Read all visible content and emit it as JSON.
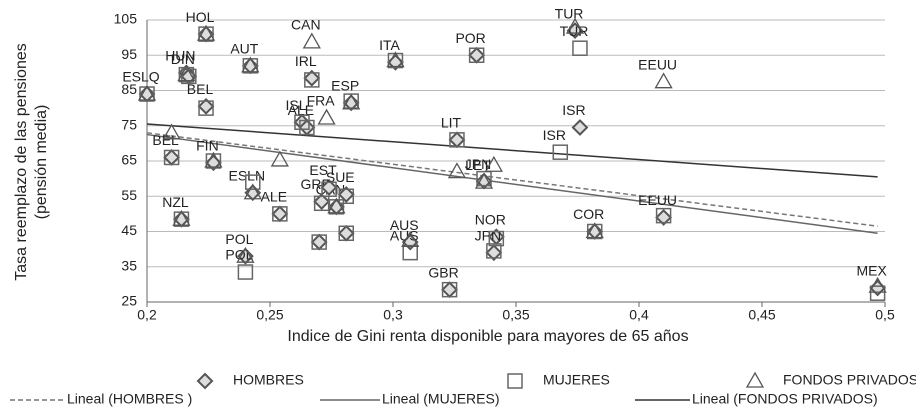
{
  "chart_data": {
    "type": "scatter",
    "x_label": "Indice de Gini renta disponible para mayores de 65 años",
    "y_label": [
      "Tasa reemplazo de las pensiones",
      "(pensión media)"
    ],
    "xlim": [
      0.2,
      0.5
    ],
    "ylim": [
      25,
      105
    ],
    "xticks": [
      {
        "value": 0.2,
        "label": "0,2"
      },
      {
        "value": 0.25,
        "label": "0,25"
      },
      {
        "value": 0.3,
        "label": "0,3"
      },
      {
        "value": 0.35,
        "label": "0,35"
      },
      {
        "value": 0.4,
        "label": "0,4"
      },
      {
        "value": 0.45,
        "label": "0,45"
      },
      {
        "value": 0.5,
        "label": "0,5"
      }
    ],
    "yticks": [
      25,
      35,
      45,
      55,
      65,
      75,
      85,
      95,
      105
    ],
    "grid": true,
    "series": [
      {
        "name": "HOMBRES",
        "marker": "diamond",
        "color": "#555555",
        "x": [
          0.2,
          0.224,
          0.216,
          0.217,
          0.224,
          0.227,
          0.21,
          0.214,
          0.243,
          0.254,
          0.24,
          0.242,
          0.263,
          0.265,
          0.267,
          0.271,
          0.277,
          0.274,
          0.281,
          0.283,
          0.301,
          0.27,
          0.281,
          0.307,
          0.323,
          0.326,
          0.334,
          0.337,
          0.342,
          0.341,
          0.374,
          0.376,
          0.382,
          0.41,
          0.497
        ],
        "values": [
          84,
          101,
          90,
          89,
          80.5,
          64.5,
          66,
          48.5,
          56,
          50,
          38,
          92,
          76,
          74.5,
          88.5,
          53.5,
          52,
          57.5,
          55.5,
          81.5,
          93,
          42,
          44.5,
          42,
          28.5,
          71,
          95,
          59.3,
          43.5,
          39,
          102,
          74.5,
          45,
          49,
          29
        ],
        "labels": [
          "ESLQ",
          "HOL",
          "HUN",
          "DIN",
          "BEL",
          "FIN",
          "BEL",
          "NZL",
          "ESLN",
          "ALE",
          "POL",
          "AUT",
          "ISL",
          "ALE",
          "IRL",
          "GRE",
          "CAN",
          "EST",
          "SUE",
          "ESP",
          "ITA",
          null,
          null,
          "AUS",
          "GBR",
          "LIT",
          "POR",
          "JPN",
          "NOR",
          "JPN",
          "TUR",
          "ISR",
          "COR",
          "EEUU",
          "MEX"
        ]
      },
      {
        "name": "MUJERES",
        "marker": "square",
        "color": "#666666",
        "x": [
          0.2,
          0.224,
          0.216,
          0.217,
          0.224,
          0.227,
          0.21,
          0.214,
          0.243,
          0.254,
          0.24,
          0.242,
          0.263,
          0.265,
          0.267,
          0.271,
          0.277,
          0.274,
          0.281,
          0.283,
          0.301,
          0.27,
          0.281,
          0.307,
          0.323,
          0.326,
          0.334,
          0.337,
          0.342,
          0.341,
          0.376,
          0.368,
          0.382,
          0.41,
          0.497
        ],
        "values": [
          84,
          101,
          89.5,
          89,
          80,
          65,
          66,
          48.5,
          59,
          50,
          33.5,
          92,
          76,
          74.5,
          88,
          53,
          52,
          57,
          55,
          82,
          93.5,
          42,
          44.5,
          39,
          28.5,
          71,
          95,
          60,
          43,
          39.5,
          97,
          67.5,
          45,
          49.5,
          27.5
        ],
        "labels": [
          null,
          null,
          null,
          null,
          null,
          null,
          null,
          null,
          null,
          null,
          "POL",
          null,
          null,
          null,
          null,
          null,
          null,
          null,
          null,
          null,
          null,
          null,
          null,
          "AUS",
          null,
          null,
          null,
          null,
          null,
          null,
          "TUR",
          "ISR",
          null,
          null,
          null
        ]
      },
      {
        "name": "FONDOS PRIVADOS",
        "marker": "triangle",
        "color": "#555555",
        "x": [
          0.2,
          0.21,
          0.224,
          0.216,
          0.227,
          0.214,
          0.254,
          0.243,
          0.24,
          0.242,
          0.273,
          0.267,
          0.301,
          0.283,
          0.277,
          0.307,
          0.326,
          0.341,
          0.337,
          0.374,
          0.382,
          0.41,
          0.497
        ],
        "values": [
          84,
          73,
          101,
          89.5,
          65,
          48.5,
          65.3,
          56,
          38,
          92,
          77.2,
          98.8,
          93.5,
          81.5,
          52,
          42.5,
          62,
          63.8,
          59,
          103,
          45,
          87.5,
          29.5
        ],
        "labels": [
          null,
          null,
          null,
          null,
          null,
          null,
          null,
          null,
          null,
          null,
          "FRA",
          "CAN",
          null,
          null,
          null,
          null,
          null,
          null,
          "LET",
          null,
          null,
          "EEUU",
          null
        ]
      }
    ],
    "trendlines": [
      {
        "name": "Lineal (HOMBRES )",
        "color": "#777777",
        "dashed": true,
        "x": [
          0.2,
          0.497
        ],
        "values": [
          73,
          46.5
        ]
      },
      {
        "name": "Lineal (MUJERES)",
        "color": "#666666",
        "dashed": false,
        "x": [
          0.2,
          0.497
        ],
        "values": [
          72.5,
          44.5
        ]
      },
      {
        "name": "Lineal (FONDOS PRIVADOS)",
        "color": "#333333",
        "dashed": false,
        "x": [
          0.2,
          0.497
        ],
        "values": [
          75.5,
          60.5
        ]
      }
    ]
  }
}
